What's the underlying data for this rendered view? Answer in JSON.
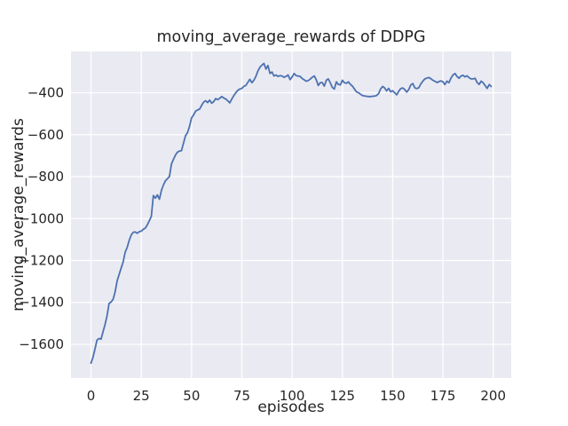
{
  "chart_data": {
    "type": "line",
    "title": "moving_average_rewards of DDPG",
    "xlabel": "episodes",
    "ylabel": "moving_average_rewards",
    "grid": true,
    "legend": "none",
    "style": "seaborn-darkgrid",
    "xlim": [
      -9.95,
      208.95
    ],
    "ylim": [
      -1761,
      -203
    ],
    "xticks": {
      "values": [
        0,
        25,
        50,
        75,
        100,
        125,
        150,
        175,
        200
      ],
      "labels": [
        "0",
        "25",
        "50",
        "75",
        "100",
        "125",
        "150",
        "175",
        "200"
      ]
    },
    "yticks": {
      "values": [
        -400,
        -600,
        -800,
        -1000,
        -1200,
        -1400,
        -1600
      ],
      "labels": [
        "−400",
        "−600",
        "−800",
        "−1000",
        "−1200",
        "−1400",
        "−1600"
      ]
    },
    "colors": {
      "figure_background": "#ffffff",
      "axes_background": "#eaeaf2",
      "grid": "#ffffff",
      "line": "#4c72b0",
      "text": "#262626"
    },
    "series": [
      {
        "name": "moving_average_rewards",
        "color": "#4c72b0",
        "x0": 0,
        "dx": 1,
        "values": [
          -1690,
          -1662,
          -1621,
          -1580,
          -1572,
          -1575,
          -1540,
          -1505,
          -1462,
          -1405,
          -1398,
          -1385,
          -1350,
          -1297,
          -1266,
          -1236,
          -1207,
          -1160,
          -1138,
          -1104,
          -1078,
          -1066,
          -1064,
          -1070,
          -1063,
          -1060,
          -1051,
          -1046,
          -1030,
          -1010,
          -990,
          -890,
          -903,
          -887,
          -908,
          -866,
          -840,
          -820,
          -810,
          -800,
          -740,
          -718,
          -697,
          -683,
          -678,
          -676,
          -640,
          -605,
          -590,
          -560,
          -520,
          -506,
          -488,
          -482,
          -478,
          -460,
          -445,
          -438,
          -447,
          -435,
          -450,
          -442,
          -428,
          -433,
          -426,
          -418,
          -425,
          -430,
          -438,
          -448,
          -430,
          -414,
          -400,
          -388,
          -382,
          -379,
          -369,
          -365,
          -350,
          -336,
          -352,
          -340,
          -322,
          -296,
          -278,
          -268,
          -260,
          -287,
          -270,
          -308,
          -301,
          -320,
          -315,
          -322,
          -318,
          -320,
          -326,
          -322,
          -315,
          -337,
          -325,
          -308,
          -318,
          -320,
          -322,
          -332,
          -338,
          -345,
          -342,
          -335,
          -326,
          -320,
          -337,
          -365,
          -352,
          -351,
          -368,
          -340,
          -334,
          -353,
          -375,
          -382,
          -348,
          -360,
          -362,
          -340,
          -352,
          -355,
          -348,
          -360,
          -368,
          -382,
          -395,
          -400,
          -407,
          -413,
          -415,
          -417,
          -418,
          -418,
          -417,
          -416,
          -413,
          -404,
          -382,
          -370,
          -377,
          -391,
          -379,
          -395,
          -390,
          -400,
          -410,
          -393,
          -380,
          -377,
          -384,
          -397,
          -384,
          -363,
          -356,
          -376,
          -380,
          -376,
          -358,
          -345,
          -334,
          -330,
          -327,
          -333,
          -340,
          -345,
          -351,
          -347,
          -343,
          -348,
          -361,
          -345,
          -352,
          -330,
          -315,
          -308,
          -322,
          -331,
          -320,
          -317,
          -324,
          -319,
          -328,
          -334,
          -334,
          -331,
          -351,
          -360,
          -345,
          -352,
          -366,
          -379,
          -361,
          -370
        ]
      }
    ]
  }
}
